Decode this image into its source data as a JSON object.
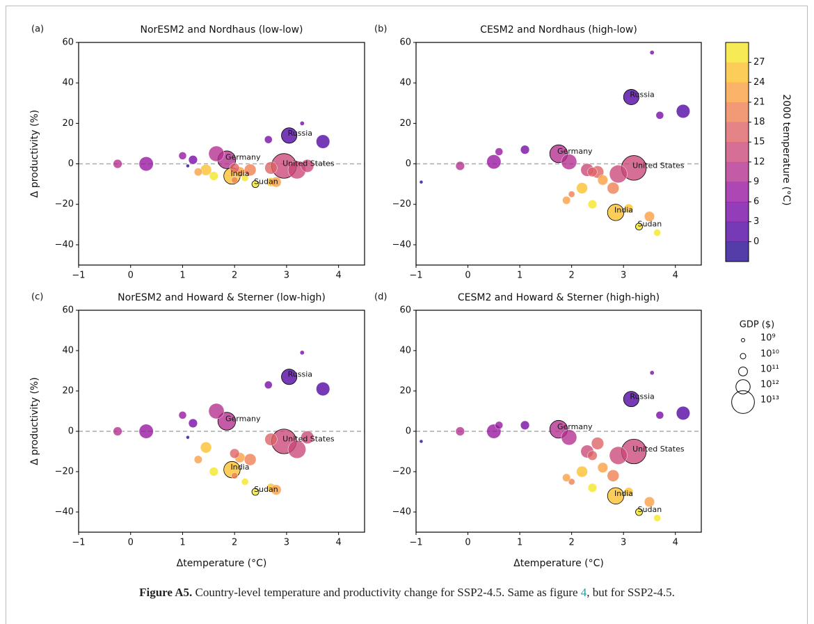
{
  "chart_data": [
    {
      "type": "scatter",
      "panel_label": "(a)",
      "title": "NorESM2 and Nordhaus (low-low)",
      "y_label": "Δ productivity (%)",
      "xlim": [
        -1,
        4.5
      ],
      "ylim": [
        -50,
        60
      ],
      "xticks": [
        {
          "value": -1,
          "label": "−1"
        },
        0,
        1,
        2,
        3,
        4
      ],
      "yticks": [
        {
          "value": -40,
          "label": "−40"
        },
        {
          "value": -20,
          "label": "−20"
        },
        0,
        20,
        40,
        60
      ],
      "reference_line": 0,
      "x": [
        3.05,
        1.85,
        1.95,
        2.4,
        2.95,
        3.2,
        2.7,
        3.7,
        0.3,
        -0.25,
        1.65,
        1.0,
        1.2,
        2.65,
        3.3,
        1.45,
        2.1,
        1.6,
        2.7,
        2.2,
        2.3,
        1.1,
        3.4,
        2.0,
        2.8,
        2.0,
        1.3
      ],
      "y": [
        14,
        2,
        -6,
        -10,
        -1,
        -3,
        -2,
        11,
        0,
        0,
        5,
        4,
        2,
        12,
        20,
        -3,
        -4,
        -6,
        -9,
        -7,
        -3,
        -1,
        -1,
        -8,
        -9,
        -2,
        -4
      ],
      "temperature": [
        1,
        9,
        25,
        28,
        12,
        12,
        15,
        1,
        8,
        10,
        9,
        6,
        5,
        3,
        4,
        24,
        22,
        27,
        26,
        28,
        18,
        -1,
        14,
        20,
        23,
        16,
        21
      ],
      "gdp": [
        1500000000000,
        3000000000000,
        2000000000000,
        30000000000,
        15000000000000,
        3000000000000,
        500000000000,
        800000000000,
        1000000000000,
        100000000000,
        1500000000000,
        50000000000,
        100000000000,
        50000000000,
        3000000000,
        300000000000,
        200000000000,
        100000000000,
        100000000000,
        30000000000,
        400000000000,
        1000000000,
        600000000000,
        20000000000,
        200000000000,
        150000000000,
        60000000000
      ],
      "point_labels": [
        "Russia",
        "Germany",
        "India",
        "Sudan",
        "United States",
        null,
        null,
        null,
        null,
        null,
        null,
        null,
        null,
        null,
        null,
        null,
        null,
        null,
        null,
        null,
        null,
        null,
        null,
        null,
        null,
        null,
        null
      ]
    },
    {
      "type": "scatter",
      "panel_label": "(b)",
      "title": "CESM2 and Nordhaus (high-low)",
      "xlim": [
        -1,
        4.5
      ],
      "ylim": [
        -50,
        60
      ],
      "xticks": [
        {
          "value": -1,
          "label": "−1"
        },
        0,
        1,
        2,
        3,
        4
      ],
      "yticks": [
        {
          "value": -40,
          "label": "−40"
        },
        {
          "value": -20,
          "label": "−20"
        },
        0,
        20,
        40,
        60
      ],
      "reference_line": 0,
      "x": [
        3.15,
        1.75,
        2.85,
        3.3,
        3.2,
        2.9,
        2.5,
        4.15,
        0.5,
        -0.15,
        1.95,
        0.6,
        1.1,
        3.7,
        3.55,
        2.2,
        2.6,
        2.4,
        3.1,
        3.65,
        2.8,
        -0.9,
        2.3,
        2.0,
        3.5,
        2.4,
        1.9
      ],
      "y": [
        33,
        5,
        -24,
        -31,
        -2,
        -5,
        -4,
        26,
        1,
        -1,
        1,
        6,
        7,
        24,
        55,
        -12,
        -8,
        -20,
        -22,
        -34,
        -12,
        -9,
        -3,
        -15,
        -26,
        -4,
        -18
      ],
      "temperature": [
        1,
        9,
        25,
        28,
        12,
        12,
        15,
        1,
        8,
        10,
        9,
        6,
        5,
        3,
        4,
        24,
        22,
        27,
        26,
        28,
        18,
        -1,
        14,
        20,
        23,
        16,
        21
      ],
      "gdp": [
        1500000000000,
        3000000000000,
        2000000000000,
        30000000000,
        15000000000000,
        3000000000000,
        500000000000,
        800000000000,
        1000000000000,
        100000000000,
        1500000000000,
        50000000000,
        100000000000,
        50000000000,
        3000000000,
        300000000000,
        200000000000,
        100000000000,
        100000000000,
        30000000000,
        400000000000,
        1000000000,
        600000000000,
        20000000000,
        200000000000,
        150000000000,
        60000000000
      ],
      "point_labels": [
        "Russia",
        "Germany",
        "India",
        "Sudan",
        "United States",
        null,
        null,
        null,
        null,
        null,
        null,
        null,
        null,
        null,
        null,
        null,
        null,
        null,
        null,
        null,
        null,
        null,
        null,
        null,
        null,
        null,
        null
      ]
    },
    {
      "type": "scatter",
      "panel_label": "(c)",
      "title": "NorESM2 and Howard & Sterner (low-high)",
      "y_label": "Δ productivity (%)",
      "x_label": "Δtemperature (°C)",
      "xlim": [
        -1,
        4.5
      ],
      "ylim": [
        -50,
        60
      ],
      "xticks": [
        {
          "value": -1,
          "label": "−1"
        },
        0,
        1,
        2,
        3,
        4
      ],
      "yticks": [
        {
          "value": -40,
          "label": "−40"
        },
        {
          "value": -20,
          "label": "−20"
        },
        0,
        20,
        40,
        60
      ],
      "reference_line": 0,
      "x": [
        3.05,
        1.85,
        1.95,
        2.4,
        2.95,
        3.2,
        2.7,
        3.7,
        0.3,
        -0.25,
        1.65,
        1.0,
        1.2,
        2.65,
        3.3,
        1.45,
        2.1,
        1.6,
        2.7,
        2.2,
        2.3,
        1.1,
        3.4,
        2.0,
        2.8,
        2.0,
        1.3
      ],
      "y": [
        27,
        5,
        -19,
        -30,
        -5,
        -9,
        -4,
        21,
        0,
        0,
        10,
        8,
        4,
        23,
        39,
        -8,
        -13,
        -20,
        -28,
        -25,
        -14,
        -3,
        -3,
        -22,
        -29,
        -11,
        -14
      ],
      "temperature": [
        1,
        9,
        25,
        28,
        12,
        12,
        15,
        1,
        8,
        10,
        9,
        6,
        5,
        3,
        4,
        24,
        22,
        27,
        26,
        28,
        18,
        -1,
        14,
        20,
        23,
        16,
        21
      ],
      "gdp": [
        1500000000000,
        3000000000000,
        2000000000000,
        30000000000,
        15000000000000,
        3000000000000,
        500000000000,
        800000000000,
        1000000000000,
        100000000000,
        1500000000000,
        50000000000,
        100000000000,
        50000000000,
        3000000000,
        300000000000,
        200000000000,
        100000000000,
        100000000000,
        30000000000,
        400000000000,
        1000000000,
        600000000000,
        20000000000,
        200000000000,
        150000000000,
        60000000000
      ],
      "point_labels": [
        "Russia",
        "Germany",
        "India",
        "Sudan",
        "United States",
        null,
        null,
        null,
        null,
        null,
        null,
        null,
        null,
        null,
        null,
        null,
        null,
        null,
        null,
        null,
        null,
        null,
        null,
        null,
        null,
        null,
        null
      ]
    },
    {
      "type": "scatter",
      "panel_label": "(d)",
      "title": "CESM2 and Howard & Sterner (high-high)",
      "x_label": "Δtemperature (°C)",
      "xlim": [
        -1,
        4.5
      ],
      "ylim": [
        -50,
        60
      ],
      "xticks": [
        {
          "value": -1,
          "label": "−1"
        },
        0,
        1,
        2,
        3,
        4
      ],
      "yticks": [
        {
          "value": -40,
          "label": "−40"
        },
        {
          "value": -20,
          "label": "−20"
        },
        0,
        20,
        40,
        60
      ],
      "reference_line": 0,
      "x": [
        3.15,
        1.75,
        2.85,
        3.3,
        3.2,
        2.9,
        2.5,
        4.15,
        0.5,
        -0.15,
        1.95,
        0.6,
        1.1,
        3.7,
        3.55,
        2.2,
        2.6,
        2.4,
        3.1,
        3.65,
        2.8,
        -0.9,
        2.3,
        2.0,
        3.5,
        2.4,
        1.9
      ],
      "y": [
        16,
        1,
        -32,
        -40,
        -10,
        -12,
        -6,
        9,
        0,
        0,
        -3,
        3,
        3,
        8,
        29,
        -20,
        -18,
        -28,
        -30,
        -43,
        -22,
        -5,
        -10,
        -25,
        -35,
        -12,
        -23
      ],
      "temperature": [
        1,
        9,
        25,
        28,
        12,
        12,
        15,
        1,
        8,
        10,
        9,
        6,
        5,
        3,
        4,
        24,
        22,
        27,
        26,
        28,
        18,
        -1,
        14,
        20,
        23,
        16,
        21
      ],
      "gdp": [
        1500000000000,
        3000000000000,
        2000000000000,
        30000000000,
        15000000000000,
        3000000000000,
        500000000000,
        800000000000,
        1000000000000,
        100000000000,
        1500000000000,
        50000000000,
        100000000000,
        50000000000,
        3000000000,
        300000000000,
        200000000000,
        100000000000,
        100000000000,
        30000000000,
        400000000000,
        1000000000,
        600000000000,
        20000000000,
        200000000000,
        150000000000,
        60000000000
      ],
      "point_labels": [
        "Russia",
        "Germany",
        "India",
        "Sudan",
        "United States",
        null,
        null,
        null,
        null,
        null,
        null,
        null,
        null,
        null,
        null,
        null,
        null,
        null,
        null,
        null,
        null,
        null,
        null,
        null,
        null,
        null,
        null
      ]
    }
  ],
  "colorbar": {
    "label": "2000 temperature (°C)",
    "colormap": "plasma",
    "lim": [
      -3,
      30
    ],
    "step": 3,
    "ticks": [
      0,
      3,
      6,
      9,
      12,
      15,
      18,
      21,
      24,
      27
    ]
  },
  "size_legend": {
    "title": "GDP ($)",
    "entries": [
      {
        "value": 1000000000,
        "label": "10⁹"
      },
      {
        "value": 10000000000,
        "label": "10¹⁰"
      },
      {
        "value": 100000000000,
        "label": "10¹¹"
      },
      {
        "value": 1000000000000,
        "label": "10¹²"
      },
      {
        "value": 10000000000000,
        "label": "10¹³"
      }
    ]
  },
  "caption": {
    "label": "Figure A5.",
    "text": " Country-level temperature and productivity change for SSP2-4.5. Same as figure ",
    "link": "4",
    "end": ", but for SSP2-4.5."
  }
}
